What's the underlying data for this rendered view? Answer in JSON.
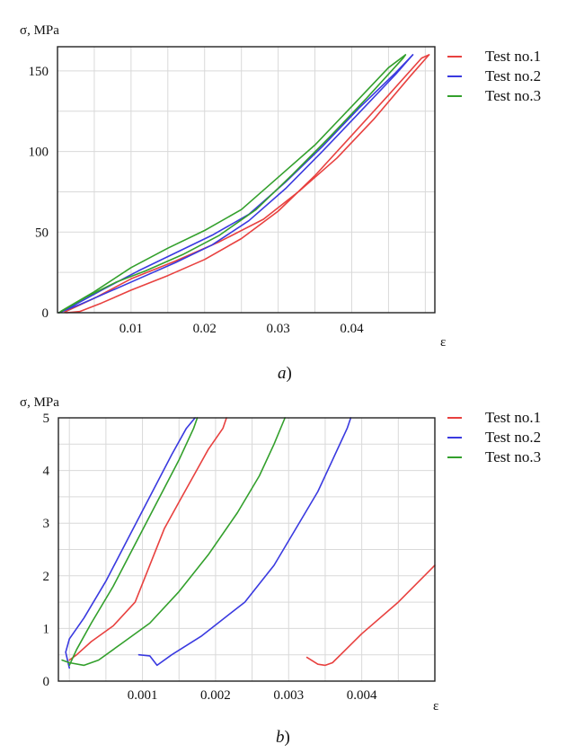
{
  "chart_data": [
    {
      "type": "line",
      "panel_label": "a",
      "ylabel": "σ, MPa",
      "xlabel": "ε",
      "xlim": [
        0.0,
        0.0513
      ],
      "ylim": [
        0,
        165
      ],
      "x_ticks": [
        0.01,
        0.02,
        0.03,
        0.04
      ],
      "x_tick_labels": [
        "0.01",
        "0.02",
        "0.03",
        "0.04"
      ],
      "y_ticks": [
        0,
        50,
        100,
        150
      ],
      "y_tick_labels": [
        "0",
        "50",
        "100",
        "150"
      ],
      "grid": true,
      "legend_position": "outside-right-top",
      "series": [
        {
          "name": "Test no.1",
          "color": "#e8413f",
          "segments": [
            [
              [
                0.0012,
                0
              ],
              [
                0.003,
                0.7
              ],
              [
                0.006,
                6
              ],
              [
                0.01,
                14
              ],
              [
                0.015,
                23
              ],
              [
                0.02,
                33
              ],
              [
                0.025,
                46
              ],
              [
                0.03,
                63
              ],
              [
                0.035,
                85
              ],
              [
                0.04,
                110
              ],
              [
                0.045,
                135
              ],
              [
                0.0495,
                158
              ],
              [
                0.0505,
                160
              ]
            ],
            [
              [
                0.0505,
                160
              ],
              [
                0.048,
                147
              ],
              [
                0.043,
                120
              ],
              [
                0.038,
                96
              ],
              [
                0.033,
                76
              ],
              [
                0.028,
                58
              ],
              [
                0.022,
                44
              ],
              [
                0.016,
                32
              ],
              [
                0.01,
                21
              ],
              [
                0.005,
                9
              ],
              [
                0.001,
                0.5
              ]
            ]
          ]
        },
        {
          "name": "Test no.2",
          "color": "#3a3ae0",
          "segments": [
            [
              [
                0.0002,
                0
              ],
              [
                0.003,
                5
              ],
              [
                0.007,
                13
              ],
              [
                0.011,
                21
              ],
              [
                0.016,
                31
              ],
              [
                0.021,
                42
              ],
              [
                0.026,
                57
              ],
              [
                0.031,
                77
              ],
              [
                0.036,
                100
              ],
              [
                0.041,
                124
              ],
              [
                0.046,
                148
              ],
              [
                0.0483,
                160
              ]
            ],
            [
              [
                0.0483,
                160
              ],
              [
                0.046,
                149
              ],
              [
                0.041,
                127
              ],
              [
                0.036,
                103
              ],
              [
                0.031,
                81
              ],
              [
                0.026,
                61
              ],
              [
                0.021,
                48
              ],
              [
                0.016,
                37
              ],
              [
                0.011,
                26
              ],
              [
                0.006,
                14
              ],
              [
                0.002,
                4
              ],
              [
                0.0002,
                0
              ]
            ]
          ]
        },
        {
          "name": "Test no.3",
          "color": "#33a02c",
          "segments": [
            [
              [
                0.0002,
                0
              ],
              [
                0.004,
                10
              ],
              [
                0.008,
                19
              ],
              [
                0.012,
                26
              ],
              [
                0.017,
                36
              ],
              [
                0.022,
                48
              ],
              [
                0.027,
                64
              ],
              [
                0.032,
                86
              ],
              [
                0.037,
                109
              ],
              [
                0.042,
                133
              ],
              [
                0.047,
                158
              ],
              [
                0.0473,
                160
              ]
            ],
            [
              [
                0.0473,
                160
              ],
              [
                0.045,
                152
              ],
              [
                0.04,
                128
              ],
              [
                0.035,
                104
              ],
              [
                0.03,
                84
              ],
              [
                0.025,
                64
              ],
              [
                0.02,
                51
              ],
              [
                0.015,
                40
              ],
              [
                0.01,
                28
              ],
              [
                0.005,
                13
              ],
              [
                0.0005,
                1
              ]
            ]
          ]
        }
      ]
    },
    {
      "type": "line",
      "panel_label": "b",
      "ylabel": "σ, MPa",
      "xlabel": "ε",
      "xlim": [
        -0.00015,
        0.005
      ],
      "ylim": [
        0,
        5
      ],
      "x_ticks": [
        0.001,
        0.002,
        0.003,
        0.004
      ],
      "x_tick_labels": [
        "0.001",
        "0.002",
        "0.003",
        "0.004"
      ],
      "y_ticks": [
        0,
        1,
        2,
        3,
        4,
        5
      ],
      "y_tick_labels": [
        "0",
        "1",
        "2",
        "3",
        "4",
        "5"
      ],
      "grid": true,
      "legend_position": "outside-right-top",
      "series": [
        {
          "name": "Test no.1",
          "color": "#e8413f",
          "segments": [
            [
              [
                0.0,
                0.4
              ],
              [
                0.0001,
                0.5
              ],
              [
                0.0003,
                0.75
              ],
              [
                0.0006,
                1.05
              ],
              [
                0.0009,
                1.5
              ],
              [
                0.0011,
                2.2
              ],
              [
                0.0013,
                2.9
              ],
              [
                0.0015,
                3.4
              ],
              [
                0.0017,
                3.9
              ],
              [
                0.0019,
                4.4
              ],
              [
                0.0021,
                4.8
              ],
              [
                0.00215,
                5.0
              ]
            ],
            [
              [
                0.00325,
                0.45
              ],
              [
                0.0034,
                0.32
              ],
              [
                0.0035,
                0.3
              ],
              [
                0.0036,
                0.35
              ],
              [
                0.004,
                0.9
              ],
              [
                0.0045,
                1.5
              ],
              [
                0.005,
                2.2
              ]
            ]
          ]
        },
        {
          "name": "Test no.2",
          "color": "#3a3ae0",
          "segments": [
            [
              [
                0.0,
                0.25
              ],
              [
                -5e-05,
                0.55
              ],
              [
                0.0,
                0.8
              ],
              [
                0.0002,
                1.2
              ],
              [
                0.0005,
                1.9
              ],
              [
                0.0008,
                2.7
              ],
              [
                0.0011,
                3.5
              ],
              [
                0.0014,
                4.3
              ],
              [
                0.0016,
                4.8
              ],
              [
                0.00172,
                5.0
              ]
            ],
            [
              [
                0.00095,
                0.5
              ],
              [
                0.0011,
                0.48
              ],
              [
                0.0012,
                0.3
              ],
              [
                0.0014,
                0.5
              ],
              [
                0.0018,
                0.85
              ],
              [
                0.0024,
                1.5
              ],
              [
                0.0028,
                2.2
              ],
              [
                0.0031,
                2.9
              ],
              [
                0.0034,
                3.6
              ],
              [
                0.0036,
                4.2
              ],
              [
                0.0038,
                4.8
              ],
              [
                0.00385,
                5.0
              ]
            ]
          ]
        },
        {
          "name": "Test no.3",
          "color": "#33a02c",
          "segments": [
            [
              [
                0.0,
                0.3
              ],
              [
                0.0001,
                0.6
              ],
              [
                0.0003,
                1.1
              ],
              [
                0.0006,
                1.8
              ],
              [
                0.0009,
                2.6
              ],
              [
                0.0012,
                3.4
              ],
              [
                0.0015,
                4.2
              ],
              [
                0.0017,
                4.8
              ],
              [
                0.00175,
                5.0
              ]
            ],
            [
              [
                -0.0001,
                0.4
              ],
              [
                0.0,
                0.35
              ],
              [
                0.0002,
                0.3
              ],
              [
                0.0004,
                0.4
              ],
              [
                0.0007,
                0.7
              ],
              [
                0.0011,
                1.1
              ],
              [
                0.0015,
                1.7
              ],
              [
                0.0019,
                2.4
              ],
              [
                0.0023,
                3.2
              ],
              [
                0.0026,
                3.9
              ],
              [
                0.0028,
                4.5
              ],
              [
                0.00295,
                5.0
              ]
            ]
          ]
        }
      ]
    }
  ]
}
